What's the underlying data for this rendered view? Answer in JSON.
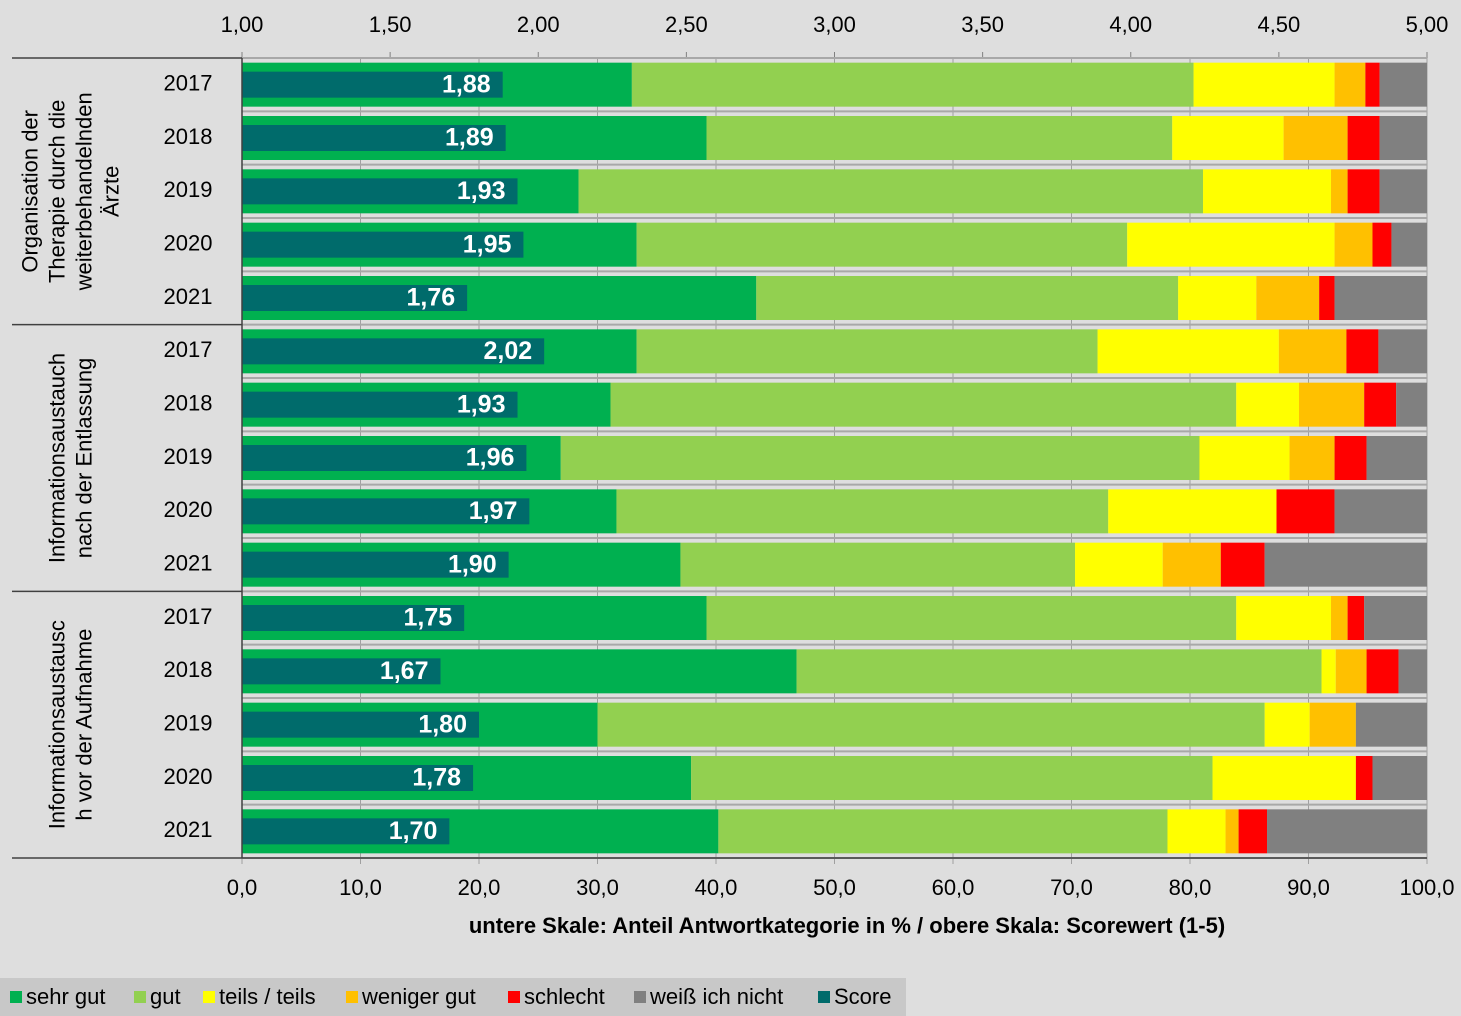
{
  "chart_data": {
    "type": "stacked-barh",
    "xlabel": "untere Skale: Anteil Antwortkategorie in % / obere Skala: Scorewert (1-5)",
    "groups": [
      [
        "Organisation der",
        "Therapie durch die",
        "weiterbehandelnden",
        "Ärzte"
      ],
      [
        "Informationsaustauch",
        "nach der Entlassung"
      ],
      [
        "Informationsaustausc",
        "h vor der Aufnahme"
      ]
    ],
    "categories": [
      "2017",
      "2018",
      "2019",
      "2020",
      "2021",
      "2017",
      "2018",
      "2019",
      "2020",
      "2021",
      "2017",
      "2018",
      "2019",
      "2020",
      "2021"
    ],
    "series": [
      {
        "name": "sehr gut",
        "color": "#00b050",
        "values": [
          32.9,
          39.2,
          28.4,
          33.3,
          43.4,
          33.3,
          31.1,
          26.9,
          31.6,
          37.0,
          39.2,
          46.8,
          30.0,
          37.9,
          40.2
        ]
      },
      {
        "name": "gut",
        "color": "#92d050",
        "values": [
          47.4,
          39.3,
          52.7,
          41.4,
          35.6,
          38.9,
          52.8,
          53.9,
          41.5,
          33.3,
          44.7,
          44.3,
          56.3,
          44.0,
          37.9
        ]
      },
      {
        "name": "teils / teils",
        "color": "#ffff00",
        "values": [
          11.9,
          9.4,
          10.8,
          17.5,
          6.6,
          15.3,
          5.3,
          7.6,
          14.2,
          7.4,
          8.0,
          1.2,
          3.8,
          12.1,
          4.9
        ]
      },
      {
        "name": "weniger gut",
        "color": "#ffc000",
        "values": [
          2.6,
          5.4,
          1.4,
          3.2,
          5.3,
          5.7,
          5.5,
          3.8,
          0,
          4.9,
          1.4,
          2.6,
          3.9,
          0,
          1.1
        ]
      },
      {
        "name": "schlecht",
        "color": "#ff0000",
        "values": [
          1.2,
          2.7,
          2.7,
          1.6,
          1.3,
          2.7,
          2.7,
          2.7,
          4.9,
          3.7,
          1.4,
          2.7,
          0,
          1.4,
          2.4
        ]
      },
      {
        "name": "weiß ich nicht",
        "color": "#808080",
        "values": [
          4.0,
          4.0,
          4.0,
          3.0,
          7.8,
          4.1,
          2.6,
          5.1,
          7.8,
          13.7,
          5.3,
          2.4,
          6.0,
          4.6,
          13.5
        ]
      },
      {
        "name": "Score",
        "color": "#006b6b",
        "axis": "x2",
        "values": [
          1.88,
          1.89,
          1.93,
          1.95,
          1.76,
          2.02,
          1.93,
          1.96,
          1.97,
          1.9,
          1.75,
          1.67,
          1.8,
          1.78,
          1.7
        ],
        "value_labels": [
          "1,88",
          "1,89",
          "1,93",
          "1,95",
          "1,76",
          "2,02",
          "1,93",
          "1,96",
          "1,97",
          "1,90",
          "1,75",
          "1,67",
          "1,80",
          "1,78",
          "1,70"
        ]
      }
    ],
    "xlim": [
      0,
      100
    ],
    "xticks": [
      {
        "value": 0,
        "label": "0,0"
      },
      {
        "value": 10,
        "label": "10,0"
      },
      {
        "value": 20,
        "label": "20,0"
      },
      {
        "value": 30,
        "label": "30,0"
      },
      {
        "value": 40,
        "label": "40,0"
      },
      {
        "value": 50,
        "label": "50,0"
      },
      {
        "value": 60,
        "label": "60,0"
      },
      {
        "value": 70,
        "label": "70,0"
      },
      {
        "value": 80,
        "label": "80,0"
      },
      {
        "value": 90,
        "label": "90,0"
      },
      {
        "value": 100,
        "label": "100,0"
      }
    ],
    "x2lim": [
      1,
      5
    ],
    "x2ticks": [
      {
        "value": 1,
        "label": "1,00"
      },
      {
        "value": 1.5,
        "label": "1,50"
      },
      {
        "value": 2,
        "label": "2,00"
      },
      {
        "value": 2.5,
        "label": "2,50"
      },
      {
        "value": 3,
        "label": "3,00"
      },
      {
        "value": 3.5,
        "label": "3,50"
      },
      {
        "value": 4,
        "label": "4,00"
      },
      {
        "value": 4.5,
        "label": "4,50"
      },
      {
        "value": 5,
        "label": "5,00"
      }
    ],
    "legend": "bottom-left"
  }
}
